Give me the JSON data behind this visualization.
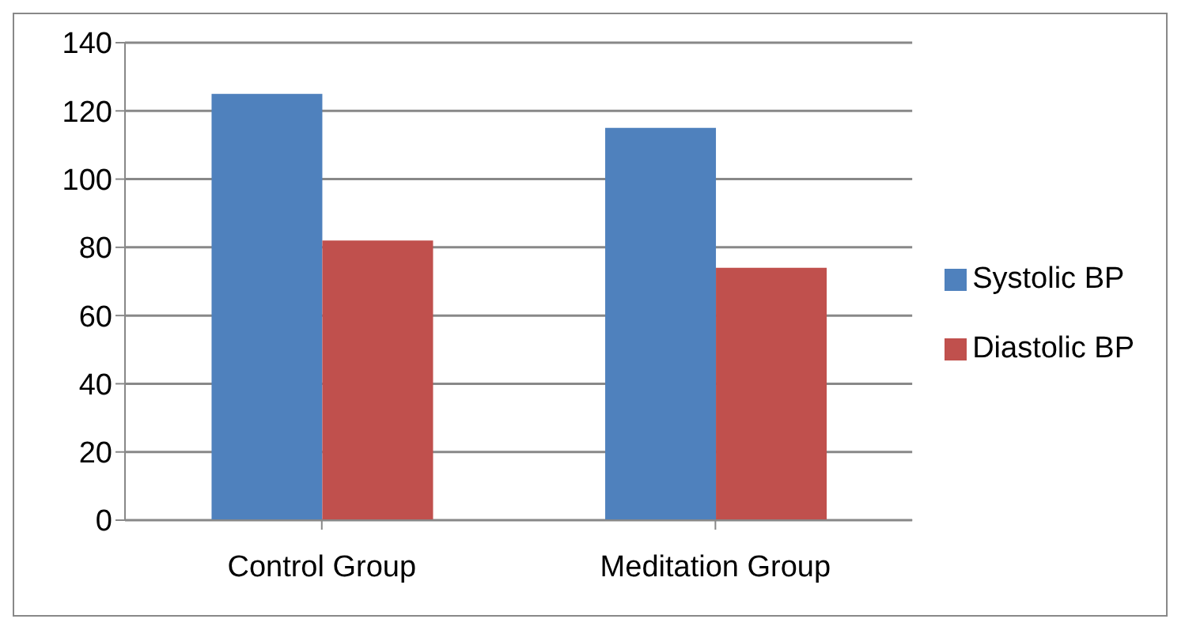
{
  "chart_data": {
    "type": "bar",
    "categories": [
      "Control Group",
      "Meditation Group"
    ],
    "series": [
      {
        "name": "Systolic BP",
        "color": "#4f81bd",
        "values": [
          125,
          115
        ]
      },
      {
        "name": "Diastolic BP",
        "color": "#c0504d",
        "values": [
          82,
          74
        ]
      }
    ],
    "ylim": [
      0,
      140
    ],
    "yticks": [
      0,
      20,
      40,
      60,
      80,
      100,
      120,
      140
    ],
    "grid": "y",
    "legend": "right"
  }
}
